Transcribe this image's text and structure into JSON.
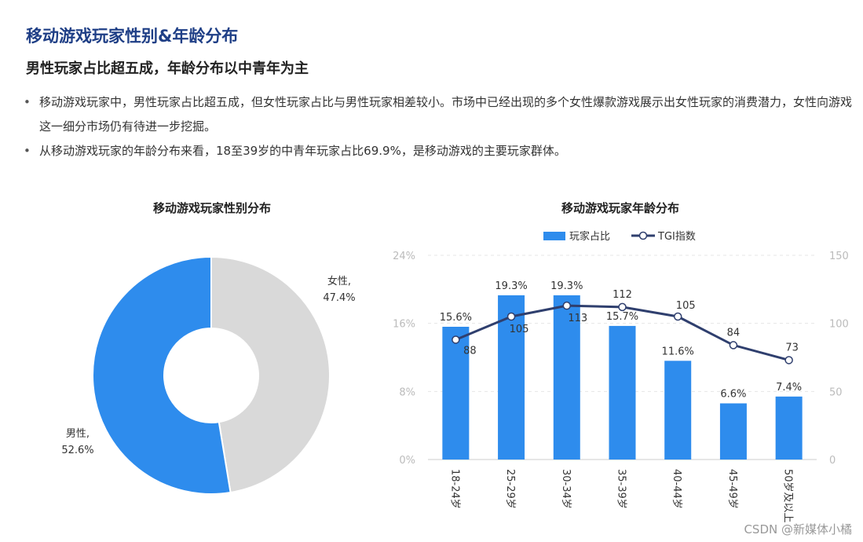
{
  "header": {
    "title": "移动游戏玩家性别&年龄分布",
    "subtitle": "男性玩家占比超五成，年龄分布以中青年为主",
    "bullets": [
      "移动游戏玩家中，男性玩家占比超五成，但女性玩家占比与男性玩家相差较小。市场中已经出现的多个女性爆款游戏展示出女性玩家的消费潜力，女性向游戏这一细分市场仍有待进一步挖掘。",
      "从移动游戏玩家的年龄分布来看，18至39岁的中青年玩家占比69.9%，是移动游戏的主要玩家群体。"
    ]
  },
  "watermark": "CSDN @新媒体小橘",
  "colors": {
    "blue": "#2e8ced",
    "grey": "#d9d9d9",
    "navy": "#2f3f6e",
    "title": "#1f3f86"
  },
  "chart_data": [
    {
      "type": "pie",
      "title": "移动游戏玩家性别分布",
      "donut": true,
      "slices": [
        {
          "label": "女性,",
          "pct_label": "47.4%",
          "value": 47.4,
          "color": "#d9d9d9"
        },
        {
          "label": "男性,",
          "pct_label": "52.6%",
          "value": 52.6,
          "color": "#2e8ced"
        }
      ]
    },
    {
      "type": "bar",
      "title": "移动游戏玩家年龄分布",
      "categories": [
        "18-24岁",
        "25-29岁",
        "30-34岁",
        "35-39岁",
        "40-44岁",
        "45-49岁",
        "50岁及以上"
      ],
      "series": [
        {
          "name": "玩家占比",
          "type": "bar",
          "axis": "left",
          "values": [
            15.6,
            19.3,
            19.3,
            15.7,
            11.6,
            6.6,
            7.4
          ],
          "labels": [
            "15.6%",
            "19.3%",
            "19.3%",
            "15.7%",
            "11.6%",
            "6.6%",
            "7.4%"
          ],
          "color": "#2e8ced"
        },
        {
          "name": "TGI指数",
          "type": "line",
          "axis": "right",
          "values": [
            88,
            105,
            113,
            112,
            105,
            84,
            73
          ],
          "color": "#2f3f6e"
        }
      ],
      "y_left": {
        "ticks": [
          "0%",
          "8%",
          "16%",
          "24%"
        ],
        "tick_values": [
          0,
          8,
          16,
          24
        ],
        "lim": [
          0,
          24
        ]
      },
      "y_right": {
        "ticks": [
          "0",
          "50",
          "100",
          "150"
        ],
        "tick_values": [
          0,
          50,
          100,
          150
        ],
        "lim": [
          0,
          150
        ]
      },
      "legend": "top",
      "grid": true
    }
  ]
}
